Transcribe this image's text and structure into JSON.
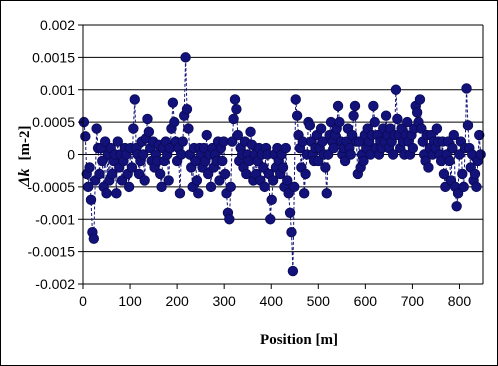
{
  "chart_data": {
    "type": "scatter",
    "title": "",
    "xlabel": "Position [m]",
    "ylabel_symbol": "Δk",
    "ylabel_unit": "[m-2]",
    "xlim": [
      0,
      850
    ],
    "ylim": [
      -0.002,
      0.002
    ],
    "x_ticks": [
      0,
      100,
      200,
      300,
      400,
      500,
      600,
      700,
      800
    ],
    "x_tick_labels": [
      "0",
      "100",
      "200",
      "300",
      "400",
      "500",
      "600",
      "700",
      "800"
    ],
    "y_ticks": [
      -0.002,
      -0.0015,
      -0.001,
      -0.0005,
      0,
      0.0005,
      0.001,
      0.0015,
      0.002
    ],
    "y_tick_labels": [
      "-0.002",
      "-0.0015",
      "-0.001",
      "-0.0005",
      "0",
      "0.0005",
      "0.001",
      "0.0015",
      "0.002"
    ],
    "grid": "horizontal",
    "legend": "none",
    "colors": {
      "marker": "#12127a",
      "marker_edge": "#0a0a55",
      "connector": "#12127a",
      "plot_background": "#ffffff",
      "gridline": "#000000"
    },
    "series": [
      {
        "marker": "circle",
        "points": [
          [
            2,
            0.0005
          ],
          [
            5,
            0.00028
          ],
          [
            8,
            -0.0003
          ],
          [
            11,
            -0.0005
          ],
          [
            14,
            -0.0002
          ],
          [
            17,
            -0.0007
          ],
          [
            20,
            -0.0012
          ],
          [
            23,
            -0.0013
          ],
          [
            26,
            -0.0004
          ],
          [
            29,
            0.0004
          ],
          [
            32,
            0.0001
          ],
          [
            35,
            -0.0003
          ],
          [
            38,
            0.0001
          ],
          [
            41,
            -0.0001
          ],
          [
            44,
            -0.0005
          ],
          [
            47,
            0.0002
          ],
          [
            50,
            -0.0006
          ],
          [
            53,
            0.0
          ],
          [
            56,
            -0.0004
          ],
          [
            59,
            0.0001
          ],
          [
            62,
            -0.0003
          ],
          [
            65,
            -0.0001
          ],
          [
            68,
            0.0
          ],
          [
            71,
            -0.0006
          ],
          [
            74,
            0.0002
          ],
          [
            77,
            -0.0002
          ],
          [
            80,
            0.0
          ],
          [
            83,
            -0.0004
          ],
          [
            86,
            -0.0001
          ],
          [
            89,
            0.0001
          ],
          [
            92,
            0.0
          ],
          [
            95,
            -0.0003
          ],
          [
            98,
            -0.0005
          ],
          [
            101,
            0.0001
          ],
          [
            104,
            -0.0002
          ],
          [
            107,
            0.0004
          ],
          [
            110,
            0.00085
          ],
          [
            113,
            0.0001
          ],
          [
            116,
            0.0
          ],
          [
            119,
            -0.0003
          ],
          [
            122,
            -0.0001
          ],
          [
            125,
            0.0002
          ],
          [
            128,
            0.0
          ],
          [
            131,
            -0.0004
          ],
          [
            134,
            0.00025
          ],
          [
            137,
            0.00055
          ],
          [
            140,
            0.00035
          ],
          [
            143,
            0.0001
          ],
          [
            146,
            -0.0001
          ],
          [
            149,
            0.0002
          ],
          [
            152,
            -0.0002
          ],
          [
            155,
            0.0
          ],
          [
            158,
            -0.0001
          ],
          [
            161,
            0.00015
          ],
          [
            164,
            -0.0003
          ],
          [
            167,
            -0.0005
          ],
          [
            170,
            0.0001
          ],
          [
            173,
            -0.0001
          ],
          [
            176,
            0.0002
          ],
          [
            179,
            0.0
          ],
          [
            182,
            -0.0004
          ],
          [
            185,
            0.0001
          ],
          [
            188,
            0.0004
          ],
          [
            191,
            0.0008
          ],
          [
            194,
            0.0005
          ],
          [
            197,
            0.0002
          ],
          [
            200,
            -0.0001
          ],
          [
            203,
            0.0001
          ],
          [
            206,
            -0.0006
          ],
          [
            209,
            0.0
          ],
          [
            212,
            0.0002
          ],
          [
            215,
            0.0006
          ],
          [
            218,
            0.0015
          ],
          [
            221,
            0.0007
          ],
          [
            224,
            0.0004
          ],
          [
            227,
            0.0
          ],
          [
            230,
            -0.0002
          ],
          [
            233,
            -0.0005
          ],
          [
            236,
            0.0001
          ],
          [
            239,
            -0.0001
          ],
          [
            242,
            -0.0004
          ],
          [
            245,
            -0.0006
          ],
          [
            248,
            0.0001
          ],
          [
            251,
            0.0
          ],
          [
            254,
            -0.0002
          ],
          [
            257,
            0.0001
          ],
          [
            260,
            -0.0001
          ],
          [
            263,
            0.0003
          ],
          [
            266,
            -0.0003
          ],
          [
            269,
            0.0
          ],
          [
            272,
            -0.0005
          ],
          [
            275,
            0.0001
          ],
          [
            278,
            -0.0002
          ],
          [
            281,
            0.0
          ],
          [
            284,
            -0.0001
          ],
          [
            287,
            0.0002
          ],
          [
            290,
            -0.0004
          ],
          [
            293,
            0.0001
          ],
          [
            296,
            -0.0001
          ],
          [
            299,
            0.0002
          ],
          [
            302,
            -0.0003
          ],
          [
            305,
            -0.0006
          ],
          [
            308,
            -0.0009
          ],
          [
            311,
            -0.001
          ],
          [
            314,
            -0.0005
          ],
          [
            317,
            0.0002
          ],
          [
            320,
            0.00055
          ],
          [
            323,
            0.00085
          ],
          [
            326,
            0.0007
          ],
          [
            329,
            0.0003
          ],
          [
            332,
            -0.0001
          ],
          [
            335,
            0.0001
          ],
          [
            338,
            0.0
          ],
          [
            341,
            -0.0002
          ],
          [
            344,
            0.0002
          ],
          [
            347,
            -0.0003
          ],
          [
            350,
            0.0
          ],
          [
            353,
            -0.0001
          ],
          [
            356,
            0.00035
          ],
          [
            359,
            0.00015
          ],
          [
            362,
            -0.0004
          ],
          [
            365,
            0.0
          ],
          [
            368,
            -0.0003
          ],
          [
            371,
            -0.0001
          ],
          [
            374,
            0.0001
          ],
          [
            377,
            -0.0004
          ],
          [
            380,
            0.0
          ],
          [
            383,
            -0.0002
          ],
          [
            386,
            -0.0005
          ],
          [
            389,
            0.0001
          ],
          [
            392,
            0.0
          ],
          [
            395,
            -0.0003
          ],
          [
            398,
            -0.001
          ],
          [
            401,
            -0.0007
          ],
          [
            404,
            -0.0004
          ],
          [
            407,
            0.0
          ],
          [
            410,
            -0.0002
          ],
          [
            413,
            0.0001
          ],
          [
            416,
            -0.0001
          ],
          [
            419,
            -0.0003
          ],
          [
            422,
            0.0
          ],
          [
            425,
            -0.0002
          ],
          [
            428,
            -0.0005
          ],
          [
            431,
            0.0001
          ],
          [
            434,
            -0.0004
          ],
          [
            437,
            -0.0006
          ],
          [
            440,
            -0.0009
          ],
          [
            443,
            -0.0012
          ],
          [
            446,
            -0.0018
          ],
          [
            449,
            -0.0005
          ],
          [
            452,
            0.00085
          ],
          [
            455,
            0.0006
          ],
          [
            458,
            0.0003
          ],
          [
            461,
            0.0001
          ],
          [
            464,
            -0.0002
          ],
          [
            467,
            0.0002
          ],
          [
            470,
            -0.0006
          ],
          [
            473,
            -0.0003
          ],
          [
            476,
            0.0
          ],
          [
            479,
            0.0005
          ],
          [
            482,
            0.00045
          ],
          [
            485,
            0.0002
          ],
          [
            488,
            0.0
          ],
          [
            491,
            -0.0001
          ],
          [
            494,
            0.0001
          ],
          [
            497,
            0.0003
          ],
          [
            500,
            -0.0001
          ],
          [
            503,
            0.0001
          ],
          [
            506,
            0.0004
          ],
          [
            509,
            0.0002
          ],
          [
            512,
            0.0
          ],
          [
            515,
            -0.0002
          ],
          [
            518,
            -0.0006
          ],
          [
            521,
            0.0
          ],
          [
            524,
            0.0003
          ],
          [
            527,
            0.0005
          ],
          [
            530,
            0.0002
          ],
          [
            533,
            0.0001
          ],
          [
            536,
            0.0003
          ],
          [
            539,
            0.0004
          ],
          [
            542,
            0.00075
          ],
          [
            545,
            0.0005
          ],
          [
            548,
            0.0002
          ],
          [
            551,
            0.0
          ],
          [
            554,
            0.0001
          ],
          [
            557,
            -0.0001
          ],
          [
            560,
            0.0002
          ],
          [
            563,
            0.0004
          ],
          [
            566,
            0.0001
          ],
          [
            569,
            0.0
          ],
          [
            572,
            0.0003
          ],
          [
            575,
            0.0006
          ],
          [
            578,
            0.00075
          ],
          [
            581,
            0.0002
          ],
          [
            584,
            -0.0003
          ],
          [
            587,
            0.0002
          ],
          [
            590,
            -0.0002
          ],
          [
            593,
            0.0
          ],
          [
            596,
            -0.0001
          ],
          [
            599,
            0.0003
          ],
          [
            602,
            0.0001
          ],
          [
            605,
            0.0004
          ],
          [
            608,
            0.0002
          ],
          [
            611,
            0.0
          ],
          [
            614,
            0.0003
          ],
          [
            617,
            0.00075
          ],
          [
            620,
            0.0005
          ],
          [
            623,
            0.0001
          ],
          [
            626,
            0.0003
          ],
          [
            629,
            0.0
          ],
          [
            632,
            0.0002
          ],
          [
            635,
            0.0001
          ],
          [
            638,
            0.0004
          ],
          [
            641,
            0.0002
          ],
          [
            644,
            0.0006
          ],
          [
            647,
            0.0003
          ],
          [
            650,
            0.0001
          ],
          [
            653,
            0.0004
          ],
          [
            656,
            0.0002
          ],
          [
            659,
            0.0
          ],
          [
            662,
            0.0003
          ],
          [
            665,
            0.001
          ],
          [
            668,
            0.00055
          ],
          [
            671,
            0.0003
          ],
          [
            674,
            0.0001
          ],
          [
            677,
            0.0004
          ],
          [
            680,
            0.0002
          ],
          [
            683,
            0.0
          ],
          [
            686,
            0.0003
          ],
          [
            689,
            0.0005
          ],
          [
            692,
            0.0002
          ],
          [
            695,
            0.0
          ],
          [
            698,
            0.0003
          ],
          [
            701,
            0.0001
          ],
          [
            704,
            0.0004
          ],
          [
            707,
            0.00075
          ],
          [
            710,
            0.00065
          ],
          [
            713,
            0.0005
          ],
          [
            716,
            0.00085
          ],
          [
            719,
            0.0004
          ],
          [
            722,
            0.0002
          ],
          [
            725,
            0.0
          ],
          [
            728,
            -0.0001
          ],
          [
            731,
            0.0003
          ],
          [
            734,
            -0.0002
          ],
          [
            737,
            0.0001
          ],
          [
            740,
            0.0003
          ],
          [
            743,
            0.0
          ],
          [
            746,
            0.0002
          ],
          [
            749,
            0.0001
          ],
          [
            752,
            0.0004
          ],
          [
            755,
            0.0002
          ],
          [
            758,
            0.0
          ],
          [
            761,
            -0.0001
          ],
          [
            764,
            0.0002
          ],
          [
            767,
            -0.0003
          ],
          [
            770,
            -0.0005
          ],
          [
            773,
            0.0
          ],
          [
            776,
            0.0002
          ],
          [
            779,
            -0.0001
          ],
          [
            782,
            -0.0004
          ],
          [
            785,
            0.0001
          ],
          [
            788,
            0.0003
          ],
          [
            791,
            -0.0005
          ],
          [
            794,
            -0.0008
          ],
          [
            797,
            -0.0006
          ],
          [
            800,
            0.0
          ],
          [
            803,
            0.0002
          ],
          [
            806,
            -0.0003
          ],
          [
            809,
            -0.0005
          ],
          [
            812,
            0.0001
          ],
          [
            815,
            0.00102
          ],
          [
            818,
            0.00045
          ],
          [
            821,
            0.0001
          ],
          [
            824,
            -0.0002
          ],
          [
            827,
            0.0
          ],
          [
            830,
            -0.0004
          ],
          [
            833,
            -0.0003
          ],
          [
            836,
            -0.0005
          ],
          [
            839,
            -0.0001
          ],
          [
            842,
            0.0003
          ],
          [
            845,
            0.0
          ]
        ]
      }
    ]
  }
}
